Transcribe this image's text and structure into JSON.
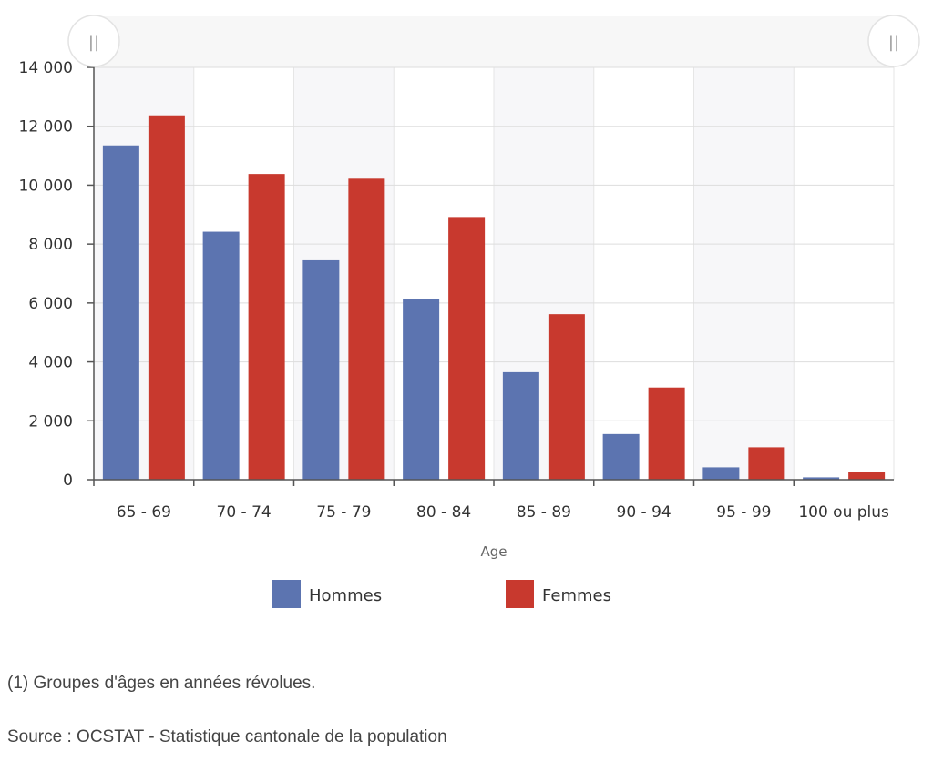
{
  "chart_data": {
    "type": "bar",
    "xlabel": "Age",
    "ylabel": "",
    "ylim": [
      0,
      14000
    ],
    "yticks": [
      0,
      2000,
      4000,
      6000,
      8000,
      10000,
      12000,
      14000
    ],
    "ytick_labels": [
      "0",
      "2 000",
      "4 000",
      "6 000",
      "8 000",
      "10 000",
      "12 000",
      "14 000"
    ],
    "categories": [
      "65 - 69",
      "70 - 74",
      "75 - 79",
      "80 - 84",
      "85 - 89",
      "90 - 94",
      "95 - 99",
      "100 ou plus"
    ],
    "series": [
      {
        "name": "Hommes",
        "color": "#5c74b0",
        "values": [
          11350,
          8420,
          7450,
          6130,
          3650,
          1550,
          420,
          80
        ]
      },
      {
        "name": "Femmes",
        "color": "#c8392e",
        "values": [
          12370,
          10380,
          10220,
          8920,
          5620,
          3130,
          1100,
          250
        ]
      }
    ],
    "legend_position": "bottom",
    "grid": true,
    "navigator_handle_label": "||"
  },
  "notes": {
    "footnote": "(1) Groupes d'âges en années révolues.",
    "source": "Source : OCSTAT - Statistique cantonale de la population"
  }
}
